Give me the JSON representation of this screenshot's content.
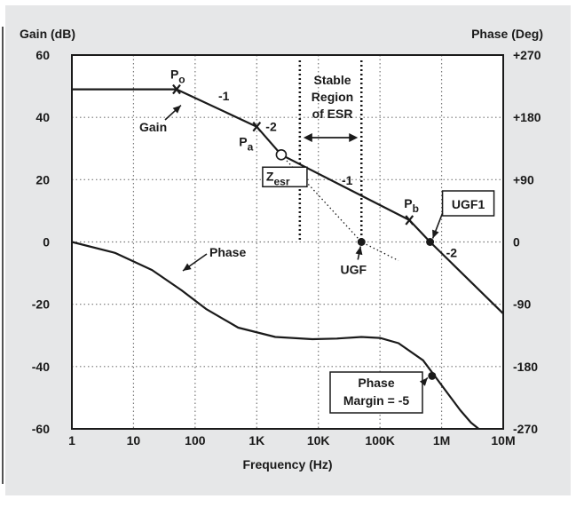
{
  "colors": {
    "panel": "#e6e7e8",
    "plot_bg": "#ffffff",
    "ink": "#1a1a1a"
  },
  "chart_data": {
    "type": "line",
    "title": "",
    "xlabel": "Frequency (Hz)",
    "ylabel": "Gain (dB)",
    "y2label": "Phase (Deg)",
    "x_scale": "log",
    "xlim": [
      1,
      10000000
    ],
    "ylim": [
      -60,
      60
    ],
    "y2lim": [
      -270,
      270
    ],
    "x_ticks": [
      1,
      10,
      100,
      1000,
      10000,
      100000,
      1000000,
      10000000
    ],
    "x_tick_labels": [
      "1",
      "10",
      "100",
      "1K",
      "10K",
      "100K",
      "1M",
      "10M"
    ],
    "y_ticks": [
      60,
      40,
      20,
      0,
      -20,
      -40,
      -60
    ],
    "y_tick_labels": [
      "60",
      "40",
      "20",
      "0",
      "-20",
      "-40",
      "-60"
    ],
    "y2_ticks": [
      270,
      180,
      90,
      0,
      -90,
      -180,
      -270
    ],
    "y2_tick_labels": [
      "+270",
      "+180",
      "+90",
      "0",
      "-90",
      "-180",
      "-270"
    ],
    "grid": true,
    "series": [
      {
        "name": "Gain",
        "axis": "left",
        "style": "solid",
        "x": [
          1,
          50,
          1000,
          2500,
          300000,
          650000,
          10000000
        ],
        "y": [
          49,
          49,
          37,
          28,
          7,
          0,
          -23
        ]
      },
      {
        "axis": "left",
        "style": "dotted",
        "x": [
          2500,
          50000,
          200000
        ],
        "y": [
          28,
          0,
          -6
        ]
      },
      {
        "name": "Phase",
        "axis": "left",
        "style": "solid",
        "x": [
          1,
          5,
          20,
          60,
          150,
          500,
          2000,
          8000,
          20000,
          50000,
          100000,
          200000,
          500000,
          1000000,
          2000000,
          3000000,
          4000000
        ],
        "y": [
          0,
          -3.5,
          -9,
          -15.5,
          -21.5,
          -27.5,
          -30.5,
          -31.2,
          -31,
          -30.5,
          -30.8,
          -32.5,
          -38,
          -46,
          -54,
          -58,
          -60
        ]
      }
    ],
    "regions": [
      {
        "label_lines": [
          "Stable",
          "Region",
          "of ESR"
        ],
        "x_from": 5000,
        "x_to": 50000,
        "style": "dotted"
      }
    ],
    "markers": [
      {
        "id": "po",
        "kind": "cross",
        "x": 50,
        "y": 49
      },
      {
        "id": "pa",
        "kind": "cross",
        "x": 1000,
        "y": 37
      },
      {
        "id": "zesr",
        "kind": "circle-open",
        "x": 2500,
        "y": 28
      },
      {
        "id": "pb",
        "kind": "cross",
        "x": 300000,
        "y": 7
      },
      {
        "id": "ugf",
        "kind": "dot",
        "x": 50000,
        "y": 0
      },
      {
        "id": "ugf1",
        "kind": "dot",
        "x": 650000,
        "y": 0
      },
      {
        "id": "pm",
        "kind": "dot",
        "x": 700000,
        "y": -43
      }
    ],
    "annotations": [
      {
        "id": "po",
        "text": "P",
        "sub": "o"
      },
      {
        "id": "pa",
        "text": "P",
        "sub": "a"
      },
      {
        "id": "pb",
        "text": "P",
        "sub": "b"
      },
      {
        "id": "zesr",
        "text": "Z",
        "sub": "esr",
        "boxed": true
      },
      {
        "id": "gain",
        "text": "Gain"
      },
      {
        "id": "phase",
        "text": "Phase"
      },
      {
        "id": "ugf",
        "text": "UGF"
      },
      {
        "id": "ugf1",
        "text": "UGF1",
        "boxed": true
      },
      {
        "id": "pm1",
        "text": "Phase",
        "boxed": true
      },
      {
        "id": "pm2",
        "text": "Margin = -5"
      },
      {
        "id": "s1",
        "text": "-1"
      },
      {
        "id": "s2",
        "text": "-2"
      },
      {
        "id": "s3",
        "text": "-1"
      },
      {
        "id": "s4",
        "text": "-2"
      }
    ]
  }
}
